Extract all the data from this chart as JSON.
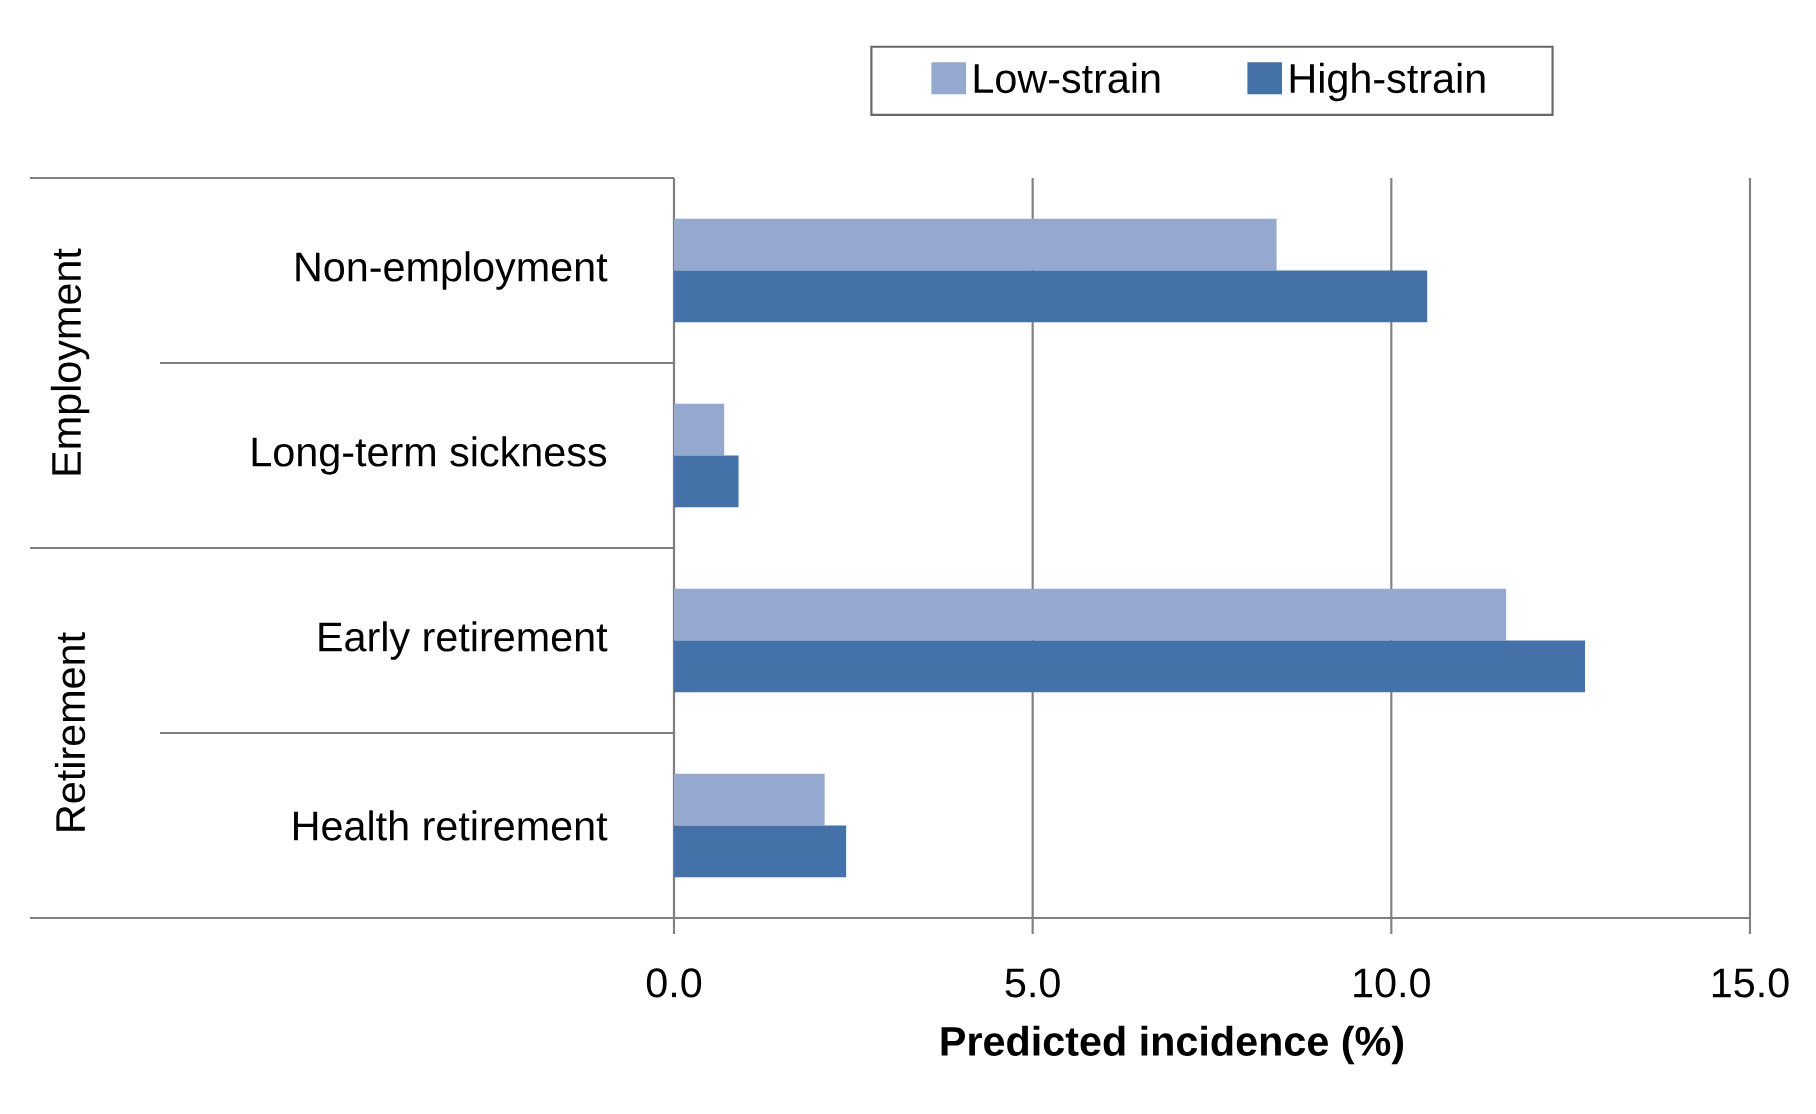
{
  "chart_data": {
    "type": "bar",
    "orientation": "horizontal",
    "categories": [
      "Non-employment",
      "Long-term sickness",
      "Early retirement",
      "Health retirement"
    ],
    "series": [
      {
        "name": "Low-strain",
        "color": "#95a9d0",
        "values": [
          8.4,
          0.7,
          11.6,
          2.1
        ]
      },
      {
        "name": "High-strain",
        "color": "#4472a8",
        "values": [
          10.5,
          0.9,
          12.7,
          2.4
        ]
      }
    ],
    "xlabel": "Predicted incidence (%)",
    "xlim": [
      0,
      15
    ],
    "xticks": [
      {
        "value": 0,
        "label": "0.0"
      },
      {
        "value": 5,
        "label": "5.0"
      },
      {
        "value": 10,
        "label": "10.0"
      },
      {
        "value": 15,
        "label": "15.0"
      }
    ],
    "grid": "x",
    "legend": "top",
    "annotations": [
      "Employment",
      "Retirement"
    ]
  }
}
